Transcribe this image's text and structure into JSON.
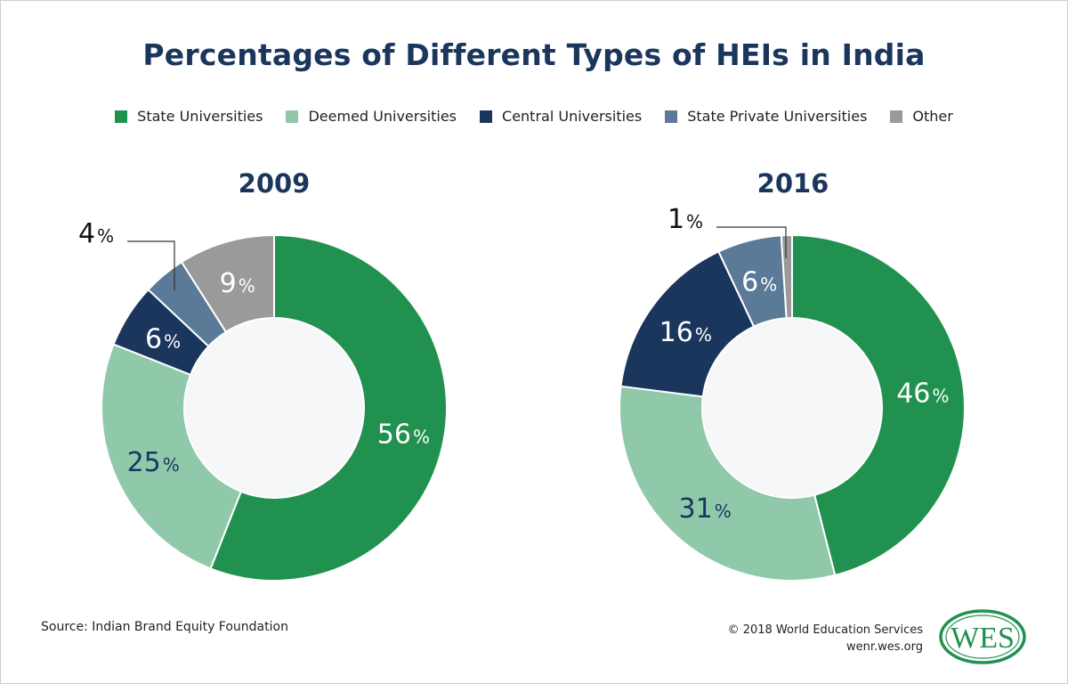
{
  "title": "Percentages of Different Types of HEIs in India",
  "legend": [
    {
      "label": "State Universities",
      "color": "#219150"
    },
    {
      "label": "Deemed Universities",
      "color": "#90c8aa"
    },
    {
      "label": "Central Universities",
      "color": "#1b365d"
    },
    {
      "label": "State Private Universities",
      "color": "#5a7a98"
    },
    {
      "label": "Other",
      "color": "#9a9a9a"
    }
  ],
  "chart_data": [
    {
      "type": "pie",
      "title": "2009",
      "categories": [
        "State Universities",
        "Deemed Universities",
        "Central Universities",
        "State Private Universities",
        "Other"
      ],
      "values": [
        56,
        25,
        6,
        4,
        9
      ],
      "labels": [
        "56",
        "25",
        "6",
        "4",
        "9"
      ],
      "unit": "%"
    },
    {
      "type": "pie",
      "title": "2016",
      "categories": [
        "State Universities",
        "Deemed Universities",
        "Central Universities",
        "State Private Universities",
        "Other"
      ],
      "values": [
        46,
        31,
        16,
        6,
        1
      ],
      "labels": [
        "46",
        "31",
        "16",
        "6",
        "1"
      ],
      "unit": "%"
    }
  ],
  "footer": {
    "source": "Source:  Indian Brand Equity Foundation",
    "copyright": "© 2018 World Education Services",
    "website": "wenr.wes.org",
    "logo_text": "WES"
  }
}
